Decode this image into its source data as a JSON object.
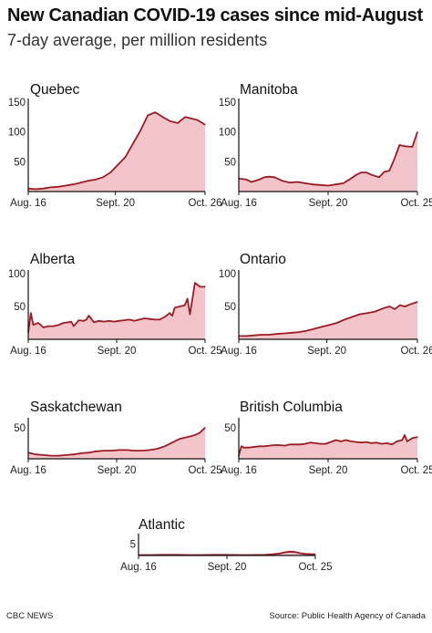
{
  "header": {
    "title": "New Canadian COVID-19 cases since mid-August",
    "subtitle": "7-day average, per million residents"
  },
  "footer": {
    "credit": "CBC NEWS",
    "source": "Source: Public Health Agency of Canada"
  },
  "colors": {
    "line": "#9b1b24",
    "fill": "#f3c5cb",
    "axis": "#111111"
  },
  "chart_data": [
    {
      "type": "area",
      "title": "Quebec",
      "x_tick_labels": [
        "Aug. 16",
        "Sept. 20",
        "Oct. 26"
      ],
      "x_ticks": [
        0,
        35,
        71
      ],
      "y_ticks": [
        50,
        100,
        150
      ],
      "ylim": [
        0,
        150
      ],
      "xlim": [
        0,
        71
      ],
      "x": [
        0,
        3,
        6,
        9,
        12,
        15,
        18,
        21,
        24,
        27,
        30,
        33,
        36,
        39,
        42,
        45,
        48,
        51,
        54,
        57,
        60,
        63,
        66,
        68,
        71
      ],
      "values": [
        5,
        4,
        5,
        7,
        8,
        10,
        12,
        15,
        18,
        20,
        24,
        32,
        45,
        58,
        80,
        102,
        128,
        133,
        125,
        118,
        115,
        125,
        122,
        120,
        112
      ]
    },
    {
      "type": "area",
      "title": "Manitoba",
      "x_tick_labels": [
        "Aug. 16",
        "Sept. 20",
        "Oct. 25"
      ],
      "x_ticks": [
        0,
        35,
        70
      ],
      "y_ticks": [
        50,
        100,
        150
      ],
      "ylim": [
        0,
        150
      ],
      "xlim": [
        0,
        70
      ],
      "x": [
        0,
        3,
        5,
        8,
        10,
        12,
        14,
        17,
        20,
        23,
        26,
        29,
        32,
        35,
        38,
        41,
        44,
        46,
        48,
        50,
        52,
        55,
        57,
        59,
        61,
        63,
        65,
        68,
        70
      ],
      "values": [
        22,
        20,
        16,
        20,
        24,
        25,
        24,
        18,
        15,
        16,
        14,
        12,
        11,
        10,
        12,
        14,
        22,
        28,
        32,
        32,
        28,
        24,
        33,
        35,
        55,
        78,
        76,
        75,
        100
      ]
    },
    {
      "type": "area",
      "title": "Alberta",
      "x_tick_labels": [
        "Aug. 16",
        "Sept. 20",
        "Oct. 25"
      ],
      "x_ticks": [
        0,
        35,
        70
      ],
      "y_ticks": [
        50,
        100
      ],
      "ylim": [
        0,
        100
      ],
      "xlim": [
        0,
        70
      ],
      "x": [
        0,
        1,
        2,
        4,
        6,
        8,
        10,
        12,
        14,
        16,
        17,
        18,
        20,
        22,
        23,
        24,
        26,
        28,
        30,
        32,
        34,
        36,
        38,
        40,
        42,
        44,
        46,
        48,
        50,
        52,
        54,
        56,
        57,
        58,
        60,
        62,
        63,
        64,
        66,
        68,
        70
      ],
      "values": [
        10,
        40,
        22,
        25,
        18,
        20,
        20,
        22,
        25,
        26,
        27,
        20,
        29,
        28,
        30,
        36,
        26,
        28,
        27,
        28,
        27,
        28,
        29,
        30,
        28,
        30,
        32,
        31,
        30,
        30,
        34,
        40,
        36,
        48,
        50,
        52,
        62,
        38,
        86,
        80,
        80
      ]
    },
    {
      "type": "area",
      "title": "Ontario",
      "x_tick_labels": [
        "Aug. 16",
        "Sept. 20",
        "Oct. 26"
      ],
      "x_ticks": [
        0,
        35,
        71
      ],
      "y_ticks": [
        50,
        100
      ],
      "ylim": [
        0,
        100
      ],
      "xlim": [
        0,
        71
      ],
      "x": [
        0,
        3,
        6,
        9,
        12,
        15,
        18,
        21,
        24,
        27,
        30,
        33,
        36,
        39,
        42,
        45,
        48,
        51,
        54,
        56,
        58,
        60,
        62,
        64,
        66,
        68,
        71
      ],
      "values": [
        5,
        5,
        6,
        7,
        7,
        8,
        9,
        10,
        11,
        13,
        16,
        19,
        22,
        25,
        30,
        34,
        38,
        40,
        42,
        45,
        48,
        50,
        46,
        52,
        50,
        53,
        57
      ]
    },
    {
      "type": "area",
      "title": "Saskatchewan",
      "x_tick_labels": [
        "Aug. 16",
        "Sept. 20",
        "Oct. 25"
      ],
      "x_ticks": [
        0,
        35,
        70
      ],
      "y_ticks": [
        50
      ],
      "ylim": [
        0,
        60
      ],
      "xlim": [
        0,
        70
      ],
      "x": [
        0,
        3,
        6,
        9,
        12,
        15,
        18,
        21,
        24,
        27,
        30,
        33,
        36,
        39,
        42,
        45,
        48,
        51,
        54,
        57,
        60,
        63,
        66,
        68,
        70
      ],
      "values": [
        10,
        7,
        6,
        5,
        5,
        6,
        7,
        9,
        10,
        12,
        13,
        13,
        14,
        14,
        13,
        13,
        14,
        16,
        20,
        26,
        32,
        35,
        38,
        42,
        50
      ]
    },
    {
      "type": "area",
      "title": "British Columbia",
      "x_tick_labels": [
        "Aug. 16",
        "Sept. 20",
        "Oct. 25"
      ],
      "x_ticks": [
        0,
        35,
        70
      ],
      "y_ticks": [
        50
      ],
      "ylim": [
        0,
        60
      ],
      "xlim": [
        0,
        70
      ],
      "x": [
        0,
        1,
        2,
        4,
        6,
        8,
        10,
        12,
        14,
        16,
        18,
        20,
        22,
        24,
        26,
        28,
        30,
        32,
        34,
        36,
        38,
        40,
        42,
        44,
        46,
        48,
        50,
        52,
        54,
        56,
        58,
        60,
        62,
        64,
        65,
        66,
        68,
        70
      ],
      "values": [
        5,
        20,
        18,
        18,
        19,
        20,
        20,
        21,
        22,
        22,
        21,
        23,
        23,
        23,
        24,
        26,
        25,
        24,
        24,
        27,
        30,
        28,
        30,
        28,
        27,
        26,
        27,
        25,
        26,
        24,
        25,
        23,
        28,
        30,
        38,
        28,
        33,
        35
      ]
    },
    {
      "type": "area",
      "title": "Atlantic",
      "x_tick_labels": [
        "Aug. 16",
        "Sept. 20",
        "Oct. 25"
      ],
      "x_ticks": [
        0,
        35,
        70
      ],
      "y_ticks": [
        5
      ],
      "ylim": [
        0,
        8
      ],
      "xlim": [
        0,
        70
      ],
      "x": [
        0,
        5,
        10,
        15,
        20,
        25,
        30,
        35,
        40,
        45,
        50,
        53,
        56,
        58,
        60,
        62,
        64,
        66,
        68,
        70
      ],
      "values": [
        0.2,
        0.2,
        0.3,
        0.3,
        0.2,
        0.2,
        0.3,
        0.3,
        0.2,
        0.2,
        0.3,
        0.5,
        0.9,
        1.4,
        1.7,
        1.5,
        1.0,
        0.7,
        0.6,
        0.5
      ]
    }
  ]
}
